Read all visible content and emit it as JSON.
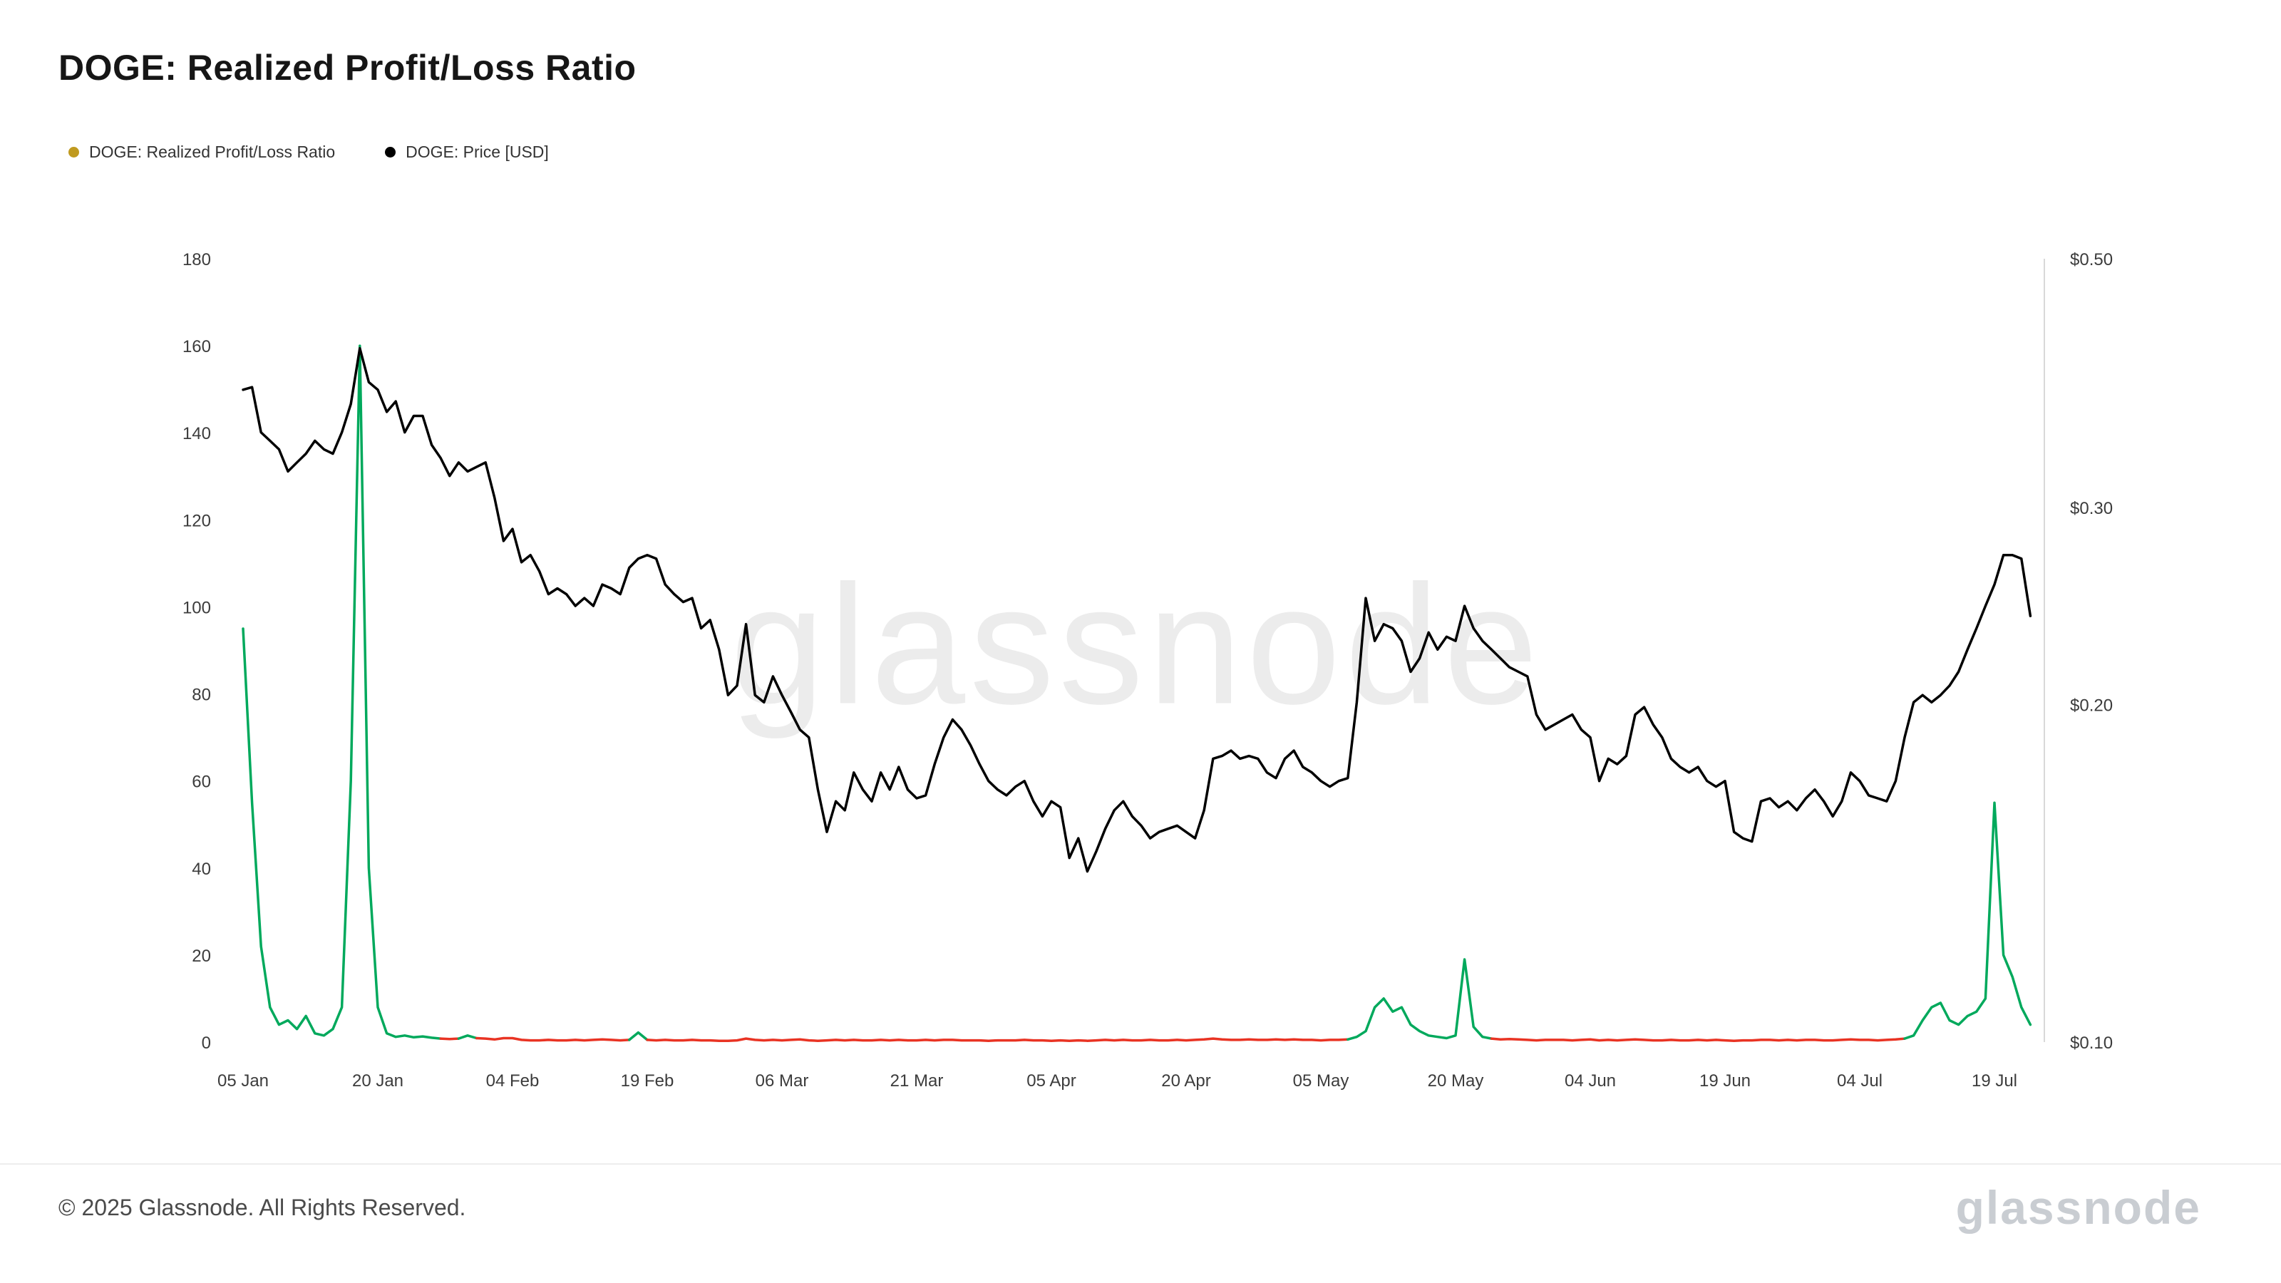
{
  "page": {
    "title": "DOGE: Realized Profit/Loss Ratio",
    "watermark": "glassnode",
    "footer_copyright": "© 2025 Glassnode. All Rights Reserved.",
    "footer_logo": "glassnode"
  },
  "legend": [
    {
      "label": "DOGE: Realized Profit/Loss Ratio",
      "color": "#c09a1f",
      "marker": "dot-icon"
    },
    {
      "label": "DOGE: Price [USD]",
      "color": "#000000",
      "marker": "dot-icon"
    }
  ],
  "colors": {
    "ratio_above_threshold": "#00a95c",
    "ratio_below_threshold": "#e93323",
    "price_line": "#000000",
    "axis_text": "#3c3c3c",
    "axis_line": "#d9d9d9"
  },
  "chart_data": {
    "type": "line",
    "title": "DOGE: Realized Profit/Loss Ratio",
    "x_unit": "day",
    "start_date": "2025-01-05",
    "end_date": "2025-07-23",
    "grid": false,
    "legend_position": "top-left",
    "x_ticks": [
      {
        "label": "05 Jan",
        "day": 0
      },
      {
        "label": "20 Jan",
        "day": 15
      },
      {
        "label": "04 Feb",
        "day": 30
      },
      {
        "label": "19 Feb",
        "day": 45
      },
      {
        "label": "06 Mar",
        "day": 60
      },
      {
        "label": "21 Mar",
        "day": 75
      },
      {
        "label": "05 Apr",
        "day": 90
      },
      {
        "label": "20 Apr",
        "day": 105
      },
      {
        "label": "05 May",
        "day": 120
      },
      {
        "label": "20 May",
        "day": 135
      },
      {
        "label": "04 Jun",
        "day": 150
      },
      {
        "label": "19 Jun",
        "day": 165
      },
      {
        "label": "04 Jul",
        "day": 180
      },
      {
        "label": "19 Jul",
        "day": 195
      }
    ],
    "left_axis": {
      "min": 0,
      "max": 180,
      "ticks": [
        180,
        160,
        140,
        120,
        100,
        80,
        60,
        40,
        20,
        0
      ],
      "scale": "linear"
    },
    "right_axis": {
      "min": 0.1,
      "max": 0.5,
      "scale": "log",
      "ticks": [
        {
          "label": "$0.50",
          "value": 0.5
        },
        {
          "label": "$0.30",
          "value": 0.3
        },
        {
          "label": "$0.20",
          "value": 0.2
        },
        {
          "label": "$0.10",
          "value": 0.1
        }
      ]
    },
    "series": [
      {
        "name": "DOGE: Realized Profit/Loss Ratio",
        "axis": "left",
        "color_rule": {
          "threshold": 1,
          "above": "#00a95c",
          "below": "#e93323"
        },
        "values": [
          95,
          55,
          22,
          8,
          4,
          5,
          3,
          6,
          2,
          1.5,
          3,
          8,
          60,
          160,
          40,
          8,
          2,
          1.2,
          1.5,
          1.1,
          1.3,
          1.0,
          0.8,
          0.7,
          0.8,
          1.5,
          0.9,
          0.8,
          0.6,
          0.9,
          0.9,
          0.5,
          0.4,
          0.4,
          0.5,
          0.4,
          0.4,
          0.5,
          0.4,
          0.5,
          0.6,
          0.5,
          0.4,
          0.5,
          2.2,
          0.5,
          0.4,
          0.5,
          0.4,
          0.4,
          0.5,
          0.4,
          0.4,
          0.3,
          0.3,
          0.4,
          0.8,
          0.5,
          0.4,
          0.5,
          0.4,
          0.5,
          0.6,
          0.4,
          0.3,
          0.4,
          0.5,
          0.4,
          0.5,
          0.4,
          0.4,
          0.5,
          0.4,
          0.5,
          0.4,
          0.4,
          0.5,
          0.4,
          0.5,
          0.5,
          0.4,
          0.4,
          0.4,
          0.3,
          0.4,
          0.4,
          0.4,
          0.5,
          0.4,
          0.4,
          0.3,
          0.4,
          0.3,
          0.4,
          0.3,
          0.4,
          0.5,
          0.4,
          0.5,
          0.4,
          0.4,
          0.5,
          0.4,
          0.4,
          0.5,
          0.4,
          0.5,
          0.6,
          0.8,
          0.6,
          0.5,
          0.5,
          0.6,
          0.5,
          0.5,
          0.6,
          0.5,
          0.6,
          0.5,
          0.5,
          0.4,
          0.5,
          0.5,
          0.6,
          1.2,
          2.5,
          8,
          10,
          7,
          8,
          4,
          2.5,
          1.5,
          1.2,
          0.9,
          1.5,
          19,
          3.5,
          1.2,
          0.8,
          0.6,
          0.7,
          0.6,
          0.5,
          0.4,
          0.5,
          0.5,
          0.5,
          0.4,
          0.5,
          0.6,
          0.4,
          0.5,
          0.4,
          0.5,
          0.6,
          0.5,
          0.4,
          0.4,
          0.5,
          0.4,
          0.4,
          0.5,
          0.4,
          0.5,
          0.4,
          0.3,
          0.4,
          0.4,
          0.5,
          0.5,
          0.4,
          0.5,
          0.4,
          0.5,
          0.5,
          0.4,
          0.4,
          0.5,
          0.6,
          0.5,
          0.5,
          0.4,
          0.5,
          0.6,
          0.8,
          1.5,
          5,
          8,
          9,
          5,
          4,
          6,
          7,
          10,
          55,
          20,
          15,
          8,
          4
        ]
      },
      {
        "name": "DOGE: Price [USD]",
        "axis": "right",
        "color": "#000000",
        "values": [
          0.382,
          0.384,
          0.35,
          0.344,
          0.338,
          0.323,
          0.329,
          0.335,
          0.344,
          0.338,
          0.335,
          0.35,
          0.371,
          0.416,
          0.388,
          0.382,
          0.365,
          0.373,
          0.35,
          0.362,
          0.362,
          0.341,
          0.332,
          0.32,
          0.329,
          0.323,
          0.326,
          0.329,
          0.306,
          0.28,
          0.287,
          0.268,
          0.272,
          0.263,
          0.251,
          0.254,
          0.251,
          0.245,
          0.249,
          0.245,
          0.256,
          0.254,
          0.251,
          0.265,
          0.27,
          0.272,
          0.27,
          0.256,
          0.251,
          0.247,
          0.249,
          0.234,
          0.238,
          0.224,
          0.204,
          0.208,
          0.236,
          0.204,
          0.201,
          0.212,
          0.204,
          0.197,
          0.19,
          0.187,
          0.168,
          0.154,
          0.164,
          0.161,
          0.174,
          0.168,
          0.164,
          0.174,
          0.168,
          0.176,
          0.168,
          0.165,
          0.166,
          0.177,
          0.187,
          0.194,
          0.19,
          0.184,
          0.177,
          0.171,
          0.168,
          0.166,
          0.169,
          0.171,
          0.164,
          0.159,
          0.164,
          0.162,
          0.146,
          0.152,
          0.142,
          0.148,
          0.155,
          0.161,
          0.164,
          0.159,
          0.156,
          0.152,
          0.154,
          0.155,
          0.156,
          0.154,
          0.152,
          0.161,
          0.179,
          0.18,
          0.182,
          0.179,
          0.18,
          0.179,
          0.174,
          0.172,
          0.179,
          0.182,
          0.176,
          0.174,
          0.171,
          0.169,
          0.171,
          0.172,
          0.201,
          0.249,
          0.228,
          0.236,
          0.234,
          0.228,
          0.214,
          0.22,
          0.232,
          0.224,
          0.23,
          0.228,
          0.245,
          0.234,
          0.228,
          0.224,
          0.22,
          0.216,
          0.214,
          0.212,
          0.196,
          0.19,
          0.192,
          0.194,
          0.196,
          0.19,
          0.187,
          0.171,
          0.179,
          0.177,
          0.18,
          0.196,
          0.199,
          0.192,
          0.187,
          0.179,
          0.176,
          0.174,
          0.176,
          0.171,
          0.169,
          0.171,
          0.154,
          0.152,
          0.151,
          0.164,
          0.165,
          0.162,
          0.164,
          0.161,
          0.165,
          0.168,
          0.164,
          0.159,
          0.164,
          0.174,
          0.171,
          0.166,
          0.165,
          0.164,
          0.171,
          0.187,
          0.201,
          0.204,
          0.201,
          0.204,
          0.208,
          0.214,
          0.224,
          0.234,
          0.245,
          0.256,
          0.272,
          0.272,
          0.27,
          0.24
        ]
      }
    ]
  }
}
